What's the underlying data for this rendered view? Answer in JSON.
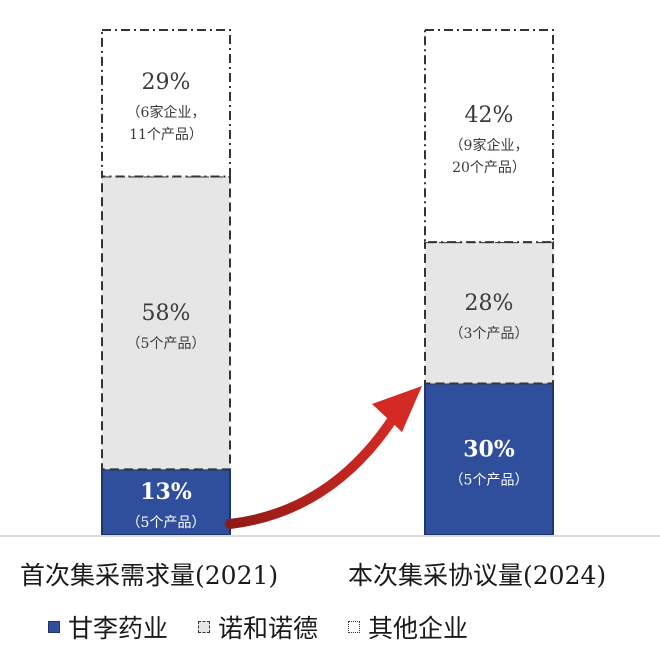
{
  "chart_data": {
    "type": "bar",
    "stacked": true,
    "categories": [
      "首次集采需求量(2021)",
      "本次集采协议量(2024)"
    ],
    "series": [
      {
        "name": "甘李药业",
        "values": [
          13,
          30
        ],
        "labels": [
          "13%",
          "30%"
        ],
        "sublabels": [
          [
            "（5个产品）"
          ],
          [
            "（5个产品）"
          ]
        ],
        "color": "#2f4f9c",
        "fill": "#2f4f9c",
        "border": "#1f3570",
        "dash": "none",
        "text_color": "#ffffff"
      },
      {
        "name": "诺和诺德",
        "values": [
          58,
          28
        ],
        "labels": [
          "58%",
          "28%"
        ],
        "sublabels": [
          [
            "（5个产品）"
          ],
          [
            "（3个产品）"
          ]
        ],
        "color": "#e6e6e6",
        "fill": "#e6e6e6",
        "border": "#333333",
        "dash": "dashed",
        "text_color": "#3a3a3a"
      },
      {
        "name": "其他企业",
        "values": [
          29,
          42
        ],
        "labels": [
          "29%",
          "42%"
        ],
        "sublabels": [
          [
            "（6家企业，",
            "11个产品）"
          ],
          [
            "（9家企业，",
            "20个产品）"
          ]
        ],
        "color": "#ffffff",
        "fill": "#ffffff",
        "border": "#333333",
        "dash": "dashdot",
        "text_color": "#3a3a3a"
      }
    ],
    "ylim": [
      0,
      100
    ],
    "annotations": [
      {
        "type": "arrow",
        "from": "首次集采需求量(2021)",
        "to": "本次集采协议量(2024)",
        "color": "#c0201c"
      }
    ],
    "legend_position": "bottom-left",
    "grid": false
  }
}
